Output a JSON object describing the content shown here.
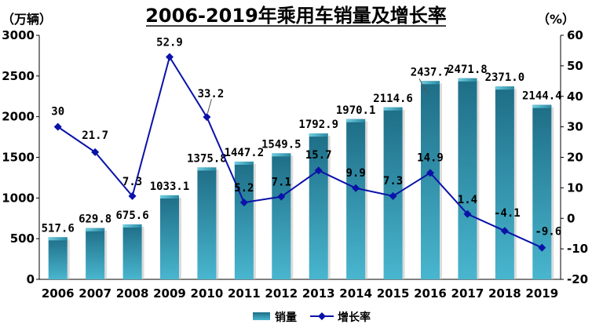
{
  "chart_data": {
    "type": "bar+line",
    "title": "2006-2019年乘用车销量及增长率",
    "categories": [
      "2006",
      "2007",
      "2008",
      "2009",
      "2010",
      "2011",
      "2012",
      "2013",
      "2014",
      "2015",
      "2016",
      "2017",
      "2018",
      "2019"
    ],
    "series": [
      {
        "name": "销量",
        "type": "bar",
        "axis": "left",
        "values": [
          517.6,
          629.8,
          675.6,
          1033.1,
          1375.8,
          1447.2,
          1549.5,
          1792.9,
          1970.1,
          2114.6,
          2437.7,
          2471.8,
          2371.0,
          2144.4
        ],
        "labels": [
          "517.6",
          "629.8",
          "675.6",
          "1033.1",
          "1375.8",
          "1447.2",
          "1549.5",
          "1792.9",
          "1970.1",
          "2114.6",
          "2437.7",
          "2471.8",
          "2371.0",
          "2144.4"
        ],
        "color": "#3aa7bf"
      },
      {
        "name": "增长率",
        "type": "line",
        "axis": "right",
        "values": [
          30,
          21.7,
          7.3,
          52.9,
          33.2,
          5.2,
          7.1,
          15.7,
          9.9,
          7.3,
          14.9,
          1.4,
          -4.1,
          -9.6
        ],
        "labels": [
          "30",
          "21.7",
          "7.3",
          "52.9",
          "33.2",
          "5.2",
          "7.1",
          "15.7",
          "9.9",
          "7.3",
          "14.9",
          "1.4",
          "-4.1",
          "-9.6"
        ],
        "color": "#0a12a8"
      }
    ],
    "y_left": {
      "label": "（万辆）",
      "ylim": [
        0,
        3000
      ],
      "ticks": [
        "0",
        "500",
        "1000",
        "1500",
        "2000",
        "2500",
        "3000"
      ]
    },
    "y_right": {
      "label": "（%）",
      "ylim": [
        -20,
        60
      ],
      "ticks": [
        "-20",
        "-10",
        "0",
        "10",
        "20",
        "30",
        "40",
        "50",
        "60"
      ]
    },
    "legend": {
      "placement": "bottom-center",
      "items": [
        "销量",
        "增长率"
      ]
    },
    "grid": false
  }
}
